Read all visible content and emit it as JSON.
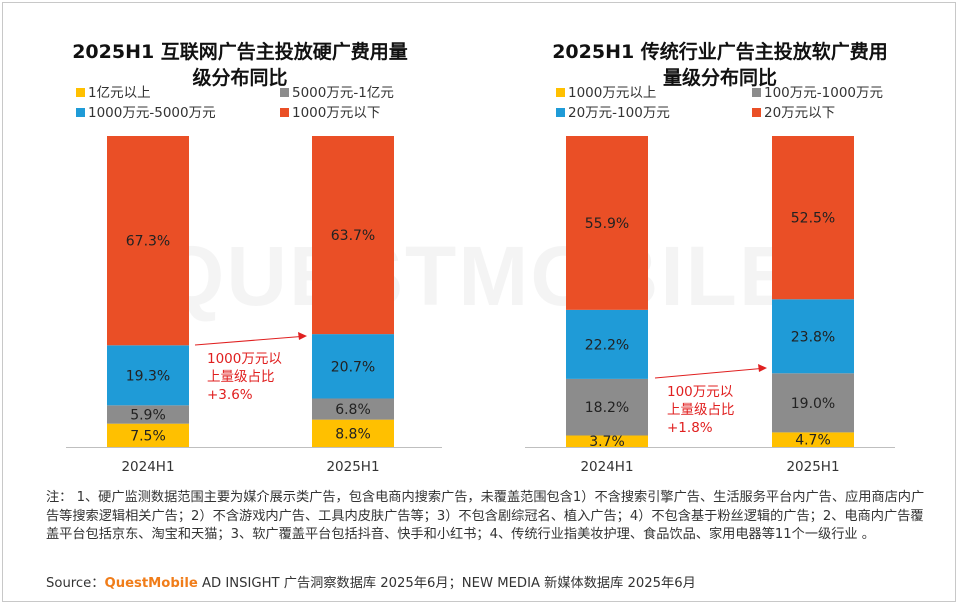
{
  "colors": {
    "yellow": "#ffc000",
    "gray": "#8c8c8c",
    "blue": "#1f9bd7",
    "red": "#ea4f26",
    "annotation": "#e02020",
    "brand": "#f07d1a"
  },
  "watermark": "QUESTMOBILE",
  "chart_data": [
    {
      "type": "bar",
      "stacked": true,
      "title": "2025H1 互联网广告主投放硬广费用量级分布同比",
      "title_lines": [
        "2025H1 互联网广告主投放硬广费用量",
        "级分布同比"
      ],
      "categories": [
        "2024H1",
        "2025H1"
      ],
      "unit": "%",
      "ylim": [
        0,
        100
      ],
      "legend_position": "top",
      "series": [
        {
          "name": "1亿元以上",
          "color": "#ffc000",
          "values": [
            7.5,
            8.8
          ],
          "labels": [
            "7.5%",
            "8.8%"
          ]
        },
        {
          "name": "5000万元-1亿元",
          "color": "#8c8c8c",
          "values": [
            5.9,
            6.8
          ],
          "labels": [
            "5.9%",
            "6.8%"
          ]
        },
        {
          "name": "1000万元-5000万元",
          "color": "#1f9bd7",
          "values": [
            19.3,
            20.7
          ],
          "labels": [
            "19.3%",
            "20.7%"
          ]
        },
        {
          "name": "1000万元以下",
          "color": "#ea4f26",
          "values": [
            67.3,
            63.7
          ],
          "labels": [
            "67.3%",
            "63.7%"
          ]
        }
      ],
      "annotation": {
        "lines": [
          "1000万元以",
          "上量级占比",
          "+3.6%"
        ]
      }
    },
    {
      "type": "bar",
      "stacked": true,
      "title": "2025H1 传统行业广告主投放软广费用量级分布同比",
      "title_lines": [
        "2025H1 传统行业广告主投放软广费用",
        "量级分布同比"
      ],
      "categories": [
        "2024H1",
        "2025H1"
      ],
      "unit": "%",
      "ylim": [
        0,
        100
      ],
      "legend_position": "top",
      "series": [
        {
          "name": "1000万元以上",
          "color": "#ffc000",
          "values": [
            3.7,
            4.7
          ],
          "labels": [
            "3.7%",
            "4.7%"
          ]
        },
        {
          "name": "100万元-1000万元",
          "color": "#8c8c8c",
          "values": [
            18.2,
            19.0
          ],
          "labels": [
            "18.2%",
            "19.0%"
          ]
        },
        {
          "name": "20万元-100万元",
          "color": "#1f9bd7",
          "values": [
            22.2,
            23.8
          ],
          "labels": [
            "22.2%",
            "23.8%"
          ]
        },
        {
          "name": "20万元以下",
          "color": "#ea4f26",
          "values": [
            55.9,
            52.5
          ],
          "labels": [
            "55.9%",
            "52.5%"
          ]
        }
      ],
      "annotation": {
        "lines": [
          "100万元以",
          "上量级占比",
          "+1.8%"
        ]
      }
    }
  ],
  "footer": {
    "note": "注： 1、硬广监测数据范围主要为媒介展示类广告，包含电商内搜索广告，未覆盖范围包含1）不含搜索引擎广告、生活服务平台内广告、应用商店内广告等搜索逻辑相关广告；2）不含游戏内广告、工具内皮肤广告等；3）不包含剧综冠名、植入广告；4）不包含基于粉丝逻辑的广告；2、电商内广告覆盖平台包括京东、淘宝和天猫；3、软广覆盖平台包括抖音、快手和小红书；4、传统行业指美妆护理、食品饮品、家用电器等11个一级行业 。",
    "source_prefix": "Source：",
    "source_brand": "QuestMobile",
    "source_rest": " AD INSIGHT 广告洞察数据库 2025年6月；NEW MEDIA 新媒体数据库 2025年6月"
  }
}
